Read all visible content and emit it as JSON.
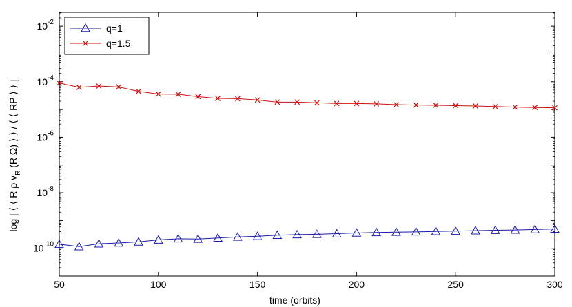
{
  "chart_data": {
    "type": "line",
    "title": "",
    "xlabel": "time (orbits)",
    "ylabel": "log | ⟨⟨ R ρ v_R (R Ω) ⟩⟩ / ⟨⟨ RP ⟩⟩ |",
    "ylabel_parts": {
      "pre": "log | ⟨ ⟨ R ρ v",
      "sub": "R",
      "post": " (R Ω) ⟩ ⟩ / ⟨ ⟨ RP ⟩ ⟩ |"
    },
    "xlim": [
      50,
      300
    ],
    "ylim_log10": [
      -11,
      -1.5
    ],
    "yscale": "log",
    "grid": false,
    "legend_position": "top-left",
    "x_ticks": [
      50,
      100,
      150,
      200,
      250,
      300
    ],
    "x_tick_labels": [
      "50",
      "100",
      "150",
      "200",
      "250",
      "300"
    ],
    "y_ticks_log10": [
      -2,
      -4,
      -6,
      -8,
      -10
    ],
    "y_tick_labels": [
      {
        "base": "10",
        "exp": "-2"
      },
      {
        "base": "10",
        "exp": "-4"
      },
      {
        "base": "10",
        "exp": "-6"
      },
      {
        "base": "10",
        "exp": "-8"
      },
      {
        "base": "10",
        "exp": "-10"
      }
    ],
    "x": [
      50,
      60,
      70,
      80,
      90,
      100,
      110,
      120,
      130,
      140,
      150,
      160,
      170,
      180,
      190,
      200,
      210,
      220,
      230,
      240,
      250,
      260,
      270,
      280,
      290,
      300
    ],
    "series": [
      {
        "name": "q=1",
        "color": "#1a1aa8",
        "marker": "triangle",
        "values": [
          1.4e-10,
          1.15e-10,
          1.45e-10,
          1.55e-10,
          1.7e-10,
          2e-10,
          2.2e-10,
          2.15e-10,
          2.35e-10,
          2.55e-10,
          2.7e-10,
          2.95e-10,
          3.1e-10,
          3.2e-10,
          3.35e-10,
          3.55e-10,
          3.7e-10,
          3.8e-10,
          3.9e-10,
          4.05e-10,
          4.15e-10,
          4.3e-10,
          4.45e-10,
          4.55e-10,
          4.75e-10,
          4.95e-10
        ]
      },
      {
        "name": "q=1.5",
        "color": "#cc1111",
        "marker": "x",
        "values": [
          9e-05,
          6.3e-05,
          7e-05,
          6.5e-05,
          4.5e-05,
          3.6e-05,
          3.55e-05,
          2.9e-05,
          2.5e-05,
          2.45e-05,
          2.2e-05,
          1.85e-05,
          1.85e-05,
          1.75e-05,
          1.65e-05,
          1.65e-05,
          1.6e-05,
          1.5e-05,
          1.45e-05,
          1.42e-05,
          1.38e-05,
          1.34e-05,
          1.28e-05,
          1.22e-05,
          1.18e-05,
          1.15e-05
        ]
      }
    ]
  }
}
